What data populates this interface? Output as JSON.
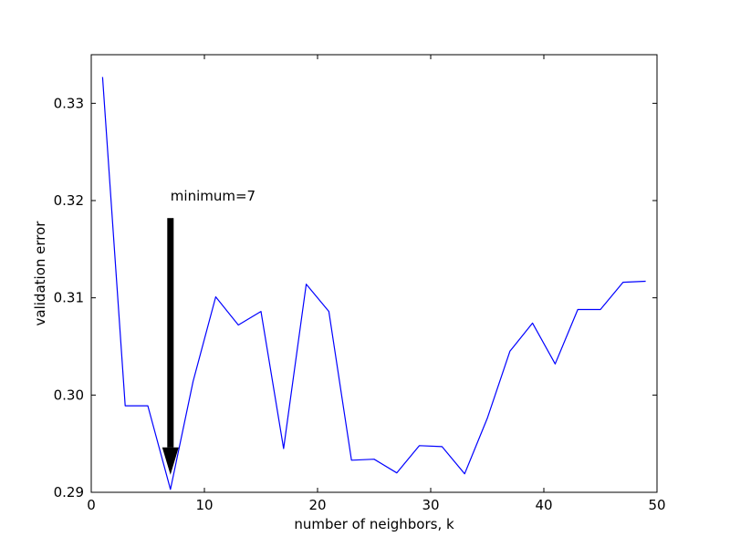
{
  "chart_data": {
    "type": "line",
    "title": "",
    "xlabel": "number of neighbors, k",
    "ylabel": "validation error",
    "xlim": [
      0,
      50
    ],
    "ylim": [
      0.29,
      0.335
    ],
    "xticks": [
      0,
      10,
      20,
      30,
      40,
      50
    ],
    "yticks": [
      0.29,
      0.3,
      0.31,
      0.32,
      0.33
    ],
    "xtick_labels": [
      "0",
      "10",
      "20",
      "30",
      "40",
      "50"
    ],
    "ytick_labels": [
      "0.29",
      "0.30",
      "0.31",
      "0.32",
      "0.33"
    ],
    "grid": false,
    "legend": null,
    "series": [
      {
        "color": "#0000ff",
        "x": [
          1,
          3,
          5,
          7,
          9,
          11,
          13,
          15,
          17,
          19,
          21,
          23,
          25,
          27,
          29,
          31,
          33,
          35,
          37,
          39,
          41,
          43,
          45,
          47,
          49
        ],
        "y": [
          0.3327,
          0.2989,
          0.2989,
          0.2903,
          0.3014,
          0.3101,
          0.3072,
          0.3086,
          0.2945,
          0.3114,
          0.3086,
          0.2933,
          0.2934,
          0.292,
          0.2948,
          0.2947,
          0.2919,
          0.2976,
          0.3045,
          0.3074,
          0.3032,
          0.3088,
          0.3088,
          0.3116,
          0.3117
        ]
      }
    ],
    "annotations": [
      {
        "text": "minimum=7",
        "arrow_tip": [
          7,
          0.2918
        ],
        "arrow_tail": [
          7,
          0.3182
        ],
        "text_at": [
          7,
          0.32
        ],
        "color": "#000000"
      }
    ]
  }
}
